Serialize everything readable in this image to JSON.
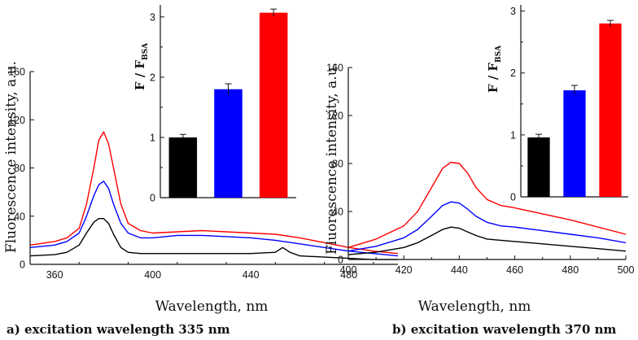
{
  "chart_data": [
    {
      "type": "line",
      "panel": "a",
      "caption": "a) excitation wavelength 335 nm",
      "xlabel": "Wavelength, nm",
      "ylabel": "Fluorescence intensity, a.u.",
      "xlim": [
        350,
        500
      ],
      "ylim": [
        0,
        160
      ],
      "xticks": [
        360,
        400,
        440,
        480
      ],
      "yticks": [
        0,
        40,
        80,
        120,
        160
      ],
      "series": [
        {
          "color": "#ff0000",
          "x": [
            350,
            360,
            365,
            370,
            373,
            376,
            378,
            380,
            382,
            384,
            387,
            390,
            395,
            400,
            410,
            420,
            430,
            440,
            450,
            460,
            470,
            480,
            490,
            500
          ],
          "y": [
            16,
            19,
            22,
            30,
            50,
            80,
            103,
            110,
            100,
            80,
            50,
            34,
            28,
            26,
            27,
            28,
            27,
            26,
            25,
            22,
            18,
            14,
            11,
            9
          ]
        },
        {
          "color": "#0000ff",
          "x": [
            350,
            360,
            365,
            370,
            373,
            376,
            378,
            380,
            382,
            384,
            387,
            390,
            395,
            400,
            410,
            420,
            430,
            440,
            450,
            460,
            470,
            480,
            490,
            500
          ],
          "y": [
            14,
            16,
            19,
            26,
            40,
            57,
            66,
            69,
            63,
            50,
            34,
            26,
            22,
            22,
            24,
            24,
            23,
            22,
            20,
            17,
            14,
            11,
            9,
            7
          ]
        },
        {
          "color": "#000000",
          "x": [
            350,
            360,
            365,
            370,
            373,
            376,
            378,
            380,
            382,
            384,
            387,
            390,
            395,
            400,
            410,
            420,
            430,
            440,
            450,
            453,
            456,
            460,
            470,
            480,
            490,
            500
          ],
          "y": [
            7,
            8,
            10,
            16,
            26,
            35,
            38,
            38,
            34,
            25,
            14,
            10,
            9,
            9,
            9,
            9,
            9,
            9,
            10,
            14,
            10,
            7,
            6,
            5,
            4,
            4
          ]
        }
      ],
      "inset": {
        "type": "bar",
        "ylabel_main": "F / F",
        "ylabel_sub": "BSA",
        "ylim": [
          0,
          3.2
        ],
        "yticks": [
          0,
          1,
          2,
          3
        ],
        "values": [
          1.0,
          1.8,
          3.07
        ],
        "errors": [
          0.05,
          0.09,
          0.06
        ],
        "colors": [
          "#000000",
          "#0000ff",
          "#ff0000"
        ]
      }
    },
    {
      "type": "line",
      "panel": "b",
      "caption": "b) excitation wavelength 370 nm",
      "xlabel": "Wavelength, nm",
      "ylabel": "Fluorescence intensity, a.u.",
      "xlim": [
        400,
        500
      ],
      "ylim": [
        0,
        160
      ],
      "xticks": [
        400,
        420,
        440,
        460,
        480,
        500
      ],
      "yticks": [
        0,
        40,
        80,
        120,
        160
      ],
      "series": [
        {
          "color": "#ff0000",
          "x": [
            400,
            410,
            420,
            425,
            430,
            434,
            437,
            440,
            443,
            446,
            450,
            455,
            460,
            470,
            480,
            490,
            500
          ],
          "y": [
            10,
            17,
            28,
            40,
            60,
            76,
            81,
            80,
            72,
            60,
            50,
            45,
            43,
            38,
            33,
            27,
            21
          ]
        },
        {
          "color": "#0000ff",
          "x": [
            400,
            410,
            420,
            425,
            430,
            434,
            437,
            440,
            443,
            446,
            450,
            455,
            460,
            470,
            480,
            490,
            500
          ],
          "y": [
            7,
            11,
            18,
            25,
            36,
            45,
            48,
            47,
            42,
            36,
            31,
            28,
            27,
            24,
            21,
            18,
            14
          ]
        },
        {
          "color": "#000000",
          "x": [
            400,
            410,
            420,
            425,
            430,
            434,
            437,
            440,
            443,
            446,
            450,
            455,
            460,
            470,
            480,
            490,
            500
          ],
          "y": [
            4,
            6,
            10,
            14,
            20,
            25,
            27,
            26,
            23,
            20,
            17,
            16,
            15,
            13,
            11,
            9,
            7
          ]
        }
      ],
      "inset": {
        "type": "bar",
        "ylabel_main": "F / F",
        "ylabel_sub": "BSA",
        "ylim": [
          0,
          3.1
        ],
        "yticks": [
          0,
          1,
          2,
          3
        ],
        "values": [
          0.96,
          1.72,
          2.8
        ],
        "errors": [
          0.05,
          0.08,
          0.05
        ],
        "colors": [
          "#000000",
          "#0000ff",
          "#ff0000"
        ]
      }
    }
  ]
}
